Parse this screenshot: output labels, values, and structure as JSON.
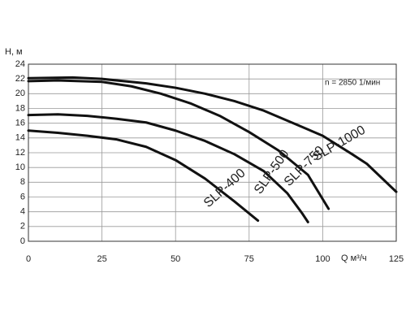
{
  "chart_data": {
    "type": "line",
    "y_label": "H, м",
    "x_label": "Q м³/ч",
    "annotation": "n = 2850 1/мин",
    "xlim": [
      0,
      125
    ],
    "xticks": [
      0,
      25,
      50,
      75,
      100,
      125
    ],
    "ylim": [
      0,
      24
    ],
    "yticks": [
      0,
      2,
      4,
      6,
      8,
      10,
      12,
      14,
      16,
      18,
      20,
      22,
      24
    ],
    "grid": true,
    "series": [
      {
        "name": "SLP-1000",
        "color": "#111111",
        "x": [
          0,
          15,
          25,
          40,
          50,
          60,
          70,
          80,
          90,
          100,
          110,
          115,
          125
        ],
        "values": [
          22.1,
          22.2,
          22,
          21.4,
          20.8,
          20,
          19,
          17.7,
          16,
          14.3,
          11.8,
          10.5,
          6.7
        ]
      },
      {
        "name": "SLP-750",
        "color": "#111111",
        "x": [
          0,
          10,
          25,
          35,
          45,
          55,
          65,
          75,
          85,
          95,
          102
        ],
        "values": [
          21.7,
          21.8,
          21.6,
          21,
          20,
          18.7,
          17,
          14.8,
          12.3,
          9,
          4.4
        ]
      },
      {
        "name": "SLP-500",
        "color": "#111111",
        "x": [
          0,
          10,
          20,
          30,
          40,
          50,
          60,
          70,
          80,
          88,
          93,
          95
        ],
        "values": [
          17.1,
          17.2,
          17,
          16.6,
          16.1,
          15,
          13.6,
          11.8,
          9.5,
          6.5,
          3.8,
          2.6
        ]
      },
      {
        "name": "SLP-400",
        "color": "#111111",
        "x": [
          0,
          10,
          20,
          30,
          40,
          50,
          60,
          70,
          78
        ],
        "values": [
          15,
          14.7,
          14.3,
          13.8,
          12.8,
          11,
          8.5,
          5.4,
          2.8
        ]
      }
    ]
  }
}
